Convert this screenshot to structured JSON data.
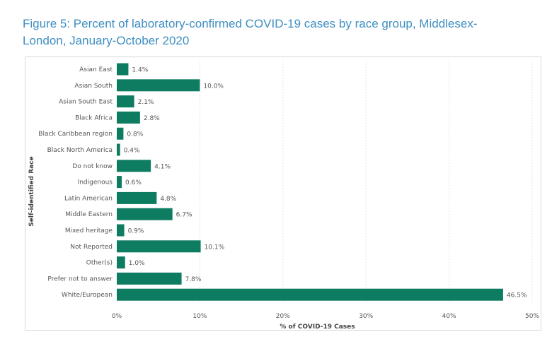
{
  "figure": {
    "title": "Figure 5: Percent of laboratory-confirmed COVID-19 cases by race group, Middlesex-London, January-October 2020"
  },
  "chart_data": {
    "type": "bar",
    "orientation": "horizontal",
    "title": "Figure 5: Percent of laboratory-confirmed COVID-19 cases by race group, Middlesex-London, January-October 2020",
    "xlabel": "% of COVID-19 Cases",
    "ylabel": "Self-identified Race",
    "xlim": [
      0,
      50
    ],
    "xticks": [
      "0%",
      "10%",
      "20%",
      "30%",
      "40%",
      "50%"
    ],
    "grid": true,
    "bar_color": "#0e7c61",
    "categories": [
      "Asian East",
      "Asian South",
      "Asian South East",
      "Black Africa",
      "Black Caribbean region",
      "Black North America",
      "Do not know",
      "Indigenous",
      "Latin American",
      "Middle Eastern",
      "Mixed heritage",
      "Not Reported",
      "Other(s)",
      "Prefer not to answer",
      "White/European"
    ],
    "values": [
      1.4,
      10.0,
      2.1,
      2.8,
      0.8,
      0.4,
      4.1,
      0.6,
      4.8,
      6.7,
      0.9,
      10.1,
      1.0,
      7.8,
      46.5
    ],
    "data_labels": [
      "1.4%",
      "10.0%",
      "2.1%",
      "2.8%",
      "0.8%",
      "0.4%",
      "4.1%",
      "0.6%",
      "4.8%",
      "6.7%",
      "0.9%",
      "10.1%",
      "1.0%",
      "7.8%",
      "46.5%"
    ]
  }
}
